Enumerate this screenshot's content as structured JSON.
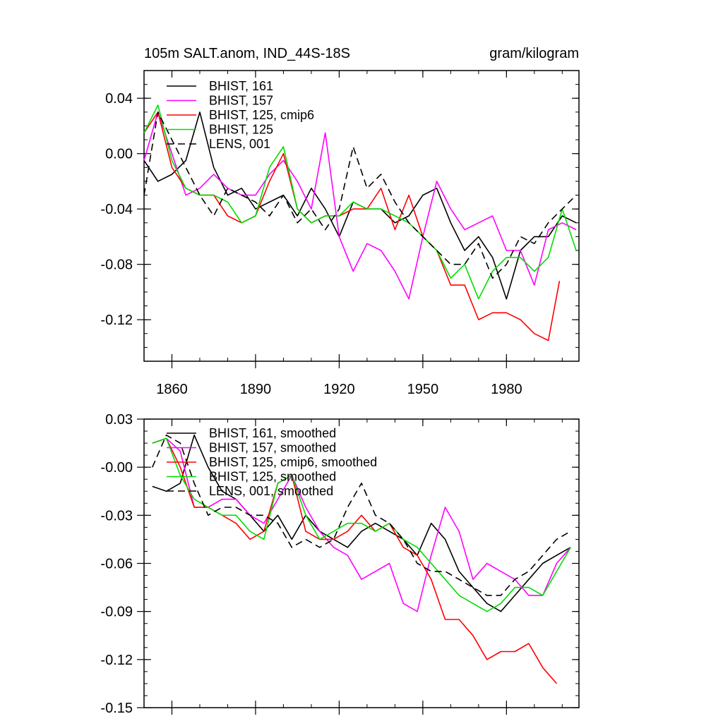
{
  "chart_data": [
    {
      "type": "line",
      "title": "105m SALT.anom, IND_44S-18S",
      "units": "gram/kilogram",
      "xlabel": "",
      "ylabel": "",
      "xlim": [
        1850,
        2006
      ],
      "ylim": [
        -0.15,
        0.06
      ],
      "xticks": [
        1860,
        1890,
        1920,
        1950,
        1980
      ],
      "xtick_labels": [
        "1860",
        "1890",
        "1920",
        "1950",
        "1980"
      ],
      "yticks": [
        0.04,
        0.0,
        -0.04,
        -0.08,
        -0.12
      ],
      "ytick_labels": [
        "0.04",
        "0.00",
        "-0.04",
        "-0.08",
        "-0.12"
      ],
      "grid": false,
      "legend_position": "top-left",
      "series": [
        {
          "name": "BHIST, 161",
          "color": "#000000",
          "dash": "solid",
          "x": [
            1850,
            1855,
            1860,
            1865,
            1870,
            1875,
            1880,
            1885,
            1890,
            1895,
            1900,
            1905,
            1910,
            1915,
            1920,
            1925,
            1930,
            1935,
            1940,
            1945,
            1950,
            1955,
            1960,
            1965,
            1970,
            1975,
            1980,
            1985,
            1990,
            1995,
            2000,
            2005
          ],
          "y": [
            -0.005,
            -0.02,
            -0.015,
            -0.005,
            0.03,
            -0.01,
            -0.03,
            -0.025,
            -0.04,
            -0.035,
            -0.03,
            -0.045,
            -0.025,
            -0.04,
            -0.06,
            -0.035,
            -0.04,
            -0.04,
            -0.05,
            -0.045,
            -0.03,
            -0.025,
            -0.05,
            -0.07,
            -0.06,
            -0.075,
            -0.105,
            -0.07,
            -0.06,
            -0.06,
            -0.045,
            -0.05
          ]
        },
        {
          "name": "BHIST, 157",
          "color": "#ff00ff",
          "dash": "solid",
          "x": [
            1850,
            1855,
            1860,
            1865,
            1870,
            1875,
            1880,
            1885,
            1890,
            1895,
            1900,
            1905,
            1910,
            1915,
            1920,
            1925,
            1930,
            1935,
            1940,
            1945,
            1950,
            1955,
            1960,
            1965,
            1970,
            1975,
            1980,
            1985,
            1990,
            1995,
            2000,
            2005
          ],
          "y": [
            -0.005,
            0.03,
            0.0,
            -0.03,
            -0.025,
            -0.015,
            -0.025,
            -0.03,
            -0.03,
            -0.015,
            -0.005,
            -0.02,
            -0.04,
            0.015,
            -0.06,
            -0.085,
            -0.065,
            -0.07,
            -0.085,
            -0.105,
            -0.06,
            -0.02,
            -0.04,
            -0.055,
            -0.05,
            -0.045,
            -0.07,
            -0.07,
            -0.095,
            -0.055,
            -0.05,
            -0.055
          ]
        },
        {
          "name": "BHIST, 125, cmip6",
          "color": "#ff0000",
          "dash": "solid",
          "x": [
            1850,
            1855,
            1860,
            1865,
            1870,
            1875,
            1880,
            1885,
            1890,
            1895,
            1900,
            1905,
            1910,
            1915,
            1920,
            1925,
            1930,
            1935,
            1940,
            1945,
            1950,
            1955,
            1960,
            1965,
            1970,
            1975,
            1980,
            1985,
            1990,
            1995,
            1999
          ],
          "y": [
            0.015,
            0.03,
            -0.01,
            -0.025,
            -0.03,
            -0.03,
            -0.045,
            -0.05,
            -0.045,
            -0.02,
            0.0,
            -0.04,
            -0.05,
            -0.045,
            -0.045,
            -0.04,
            -0.04,
            -0.025,
            -0.055,
            -0.03,
            -0.06,
            -0.07,
            -0.095,
            -0.095,
            -0.12,
            -0.115,
            -0.115,
            -0.12,
            -0.13,
            -0.135,
            -0.092
          ]
        },
        {
          "name": "BHIST, 125",
          "color": "#00dd00",
          "dash": "solid",
          "x": [
            1850,
            1855,
            1860,
            1865,
            1870,
            1875,
            1880,
            1885,
            1890,
            1895,
            1900,
            1905,
            1910,
            1915,
            1920,
            1925,
            1930,
            1935,
            1940,
            1945,
            1950,
            1955,
            1960,
            1965,
            1970,
            1975,
            1980,
            1985,
            1990,
            1995,
            2000,
            2005
          ],
          "y": [
            0.015,
            0.035,
            -0.005,
            -0.025,
            -0.03,
            -0.03,
            -0.035,
            -0.05,
            -0.045,
            -0.01,
            0.005,
            -0.04,
            -0.05,
            -0.045,
            -0.045,
            -0.035,
            -0.04,
            -0.04,
            -0.045,
            -0.05,
            -0.06,
            -0.07,
            -0.09,
            -0.08,
            -0.105,
            -0.085,
            -0.075,
            -0.075,
            -0.085,
            -0.075,
            -0.04,
            -0.07
          ]
        },
        {
          "name": "LENS, 001",
          "color": "#000000",
          "dash": "dashed",
          "x": [
            1850,
            1855,
            1860,
            1865,
            1870,
            1875,
            1880,
            1885,
            1890,
            1895,
            1900,
            1905,
            1910,
            1915,
            1920,
            1925,
            1930,
            1935,
            1940,
            1945,
            1950,
            1955,
            1960,
            1965,
            1970,
            1975,
            1980,
            1985,
            1990,
            1995,
            2000,
            2005
          ],
          "y": [
            -0.03,
            0.03,
            0.01,
            -0.01,
            -0.03,
            -0.045,
            -0.025,
            -0.03,
            -0.035,
            -0.045,
            -0.03,
            -0.05,
            -0.04,
            -0.055,
            -0.04,
            0.005,
            -0.025,
            -0.015,
            -0.035,
            -0.05,
            -0.06,
            -0.07,
            -0.08,
            -0.08,
            -0.065,
            -0.09,
            -0.08,
            -0.06,
            -0.065,
            -0.05,
            -0.04,
            -0.03
          ]
        }
      ]
    },
    {
      "type": "line",
      "title": "",
      "xlabel": "",
      "ylabel": "",
      "xlim": [
        1850,
        2006
      ],
      "ylim": [
        -0.15,
        0.03
      ],
      "xticks": [
        1860,
        1890,
        1920,
        1950,
        1980
      ],
      "xtick_labels": [],
      "yticks": [
        0.03,
        0.0,
        -0.03,
        -0.06,
        -0.09,
        -0.12,
        -0.15
      ],
      "ytick_labels": [
        "0.03",
        "-0.00",
        "-0.03",
        "-0.06",
        "-0.09",
        "-0.12",
        "-0.15"
      ],
      "grid": false,
      "legend_position": "top-center",
      "series": [
        {
          "name": "BHIST, 161, smoothed",
          "color": "#000000",
          "dash": "solid",
          "x": [
            1853,
            1858,
            1863,
            1868,
            1873,
            1878,
            1883,
            1888,
            1893,
            1898,
            1903,
            1908,
            1913,
            1918,
            1923,
            1928,
            1933,
            1938,
            1943,
            1948,
            1953,
            1958,
            1963,
            1968,
            1973,
            1978,
            1983,
            1988,
            1993,
            1998,
            2003
          ],
          "y": [
            -0.012,
            -0.015,
            -0.01,
            0.02,
            0.0,
            -0.015,
            -0.02,
            -0.03,
            -0.04,
            -0.03,
            -0.045,
            -0.03,
            -0.04,
            -0.045,
            -0.05,
            -0.04,
            -0.035,
            -0.04,
            -0.045,
            -0.055,
            -0.035,
            -0.045,
            -0.065,
            -0.075,
            -0.085,
            -0.09,
            -0.08,
            -0.07,
            -0.06,
            -0.055,
            -0.05
          ]
        },
        {
          "name": "BHIST, 157, smoothed",
          "color": "#ff00ff",
          "dash": "solid",
          "x": [
            1853,
            1858,
            1863,
            1868,
            1873,
            1878,
            1883,
            1888,
            1893,
            1898,
            1903,
            1908,
            1913,
            1918,
            1923,
            1928,
            1933,
            1938,
            1943,
            1948,
            1953,
            1958,
            1963,
            1968,
            1973,
            1978,
            1983,
            1988,
            1993,
            1998,
            2003
          ],
          "y": [
            0.015,
            0.018,
            0.01,
            -0.025,
            -0.025,
            -0.02,
            -0.02,
            -0.03,
            -0.035,
            -0.02,
            -0.005,
            -0.025,
            -0.04,
            -0.05,
            -0.055,
            -0.07,
            -0.065,
            -0.06,
            -0.085,
            -0.09,
            -0.055,
            -0.025,
            -0.04,
            -0.07,
            -0.06,
            -0.065,
            -0.07,
            -0.08,
            -0.08,
            -0.06,
            -0.05
          ]
        },
        {
          "name": "BHIST, 125, cmip6, smoothed",
          "color": "#ff0000",
          "dash": "solid",
          "x": [
            1853,
            1858,
            1863,
            1868,
            1873,
            1878,
            1883,
            1888,
            1893,
            1898,
            1903,
            1908,
            1913,
            1918,
            1923,
            1928,
            1933,
            1938,
            1943,
            1948,
            1953,
            1958,
            1963,
            1968,
            1973,
            1978,
            1983,
            1988,
            1993,
            1998
          ],
          "y": [
            0.015,
            0.018,
            0.0,
            -0.025,
            -0.025,
            -0.03,
            -0.035,
            -0.045,
            -0.04,
            -0.01,
            -0.005,
            -0.04,
            -0.045,
            -0.045,
            -0.04,
            -0.03,
            -0.04,
            -0.035,
            -0.05,
            -0.055,
            -0.07,
            -0.095,
            -0.095,
            -0.105,
            -0.12,
            -0.115,
            -0.115,
            -0.11,
            -0.125,
            -0.135
          ]
        },
        {
          "name": "BHIST, 125, smoothed",
          "color": "#00dd00",
          "dash": "solid",
          "x": [
            1853,
            1858,
            1863,
            1868,
            1873,
            1878,
            1883,
            1888,
            1893,
            1898,
            1903,
            1908,
            1913,
            1918,
            1923,
            1928,
            1933,
            1938,
            1943,
            1948,
            1953,
            1958,
            1963,
            1968,
            1973,
            1978,
            1983,
            1988,
            1993,
            1998,
            2003
          ],
          "y": [
            0.015,
            0.018,
            -0.005,
            -0.02,
            -0.025,
            -0.03,
            -0.03,
            -0.04,
            -0.045,
            -0.01,
            -0.005,
            -0.03,
            -0.045,
            -0.04,
            -0.035,
            -0.035,
            -0.04,
            -0.035,
            -0.045,
            -0.05,
            -0.06,
            -0.07,
            -0.08,
            -0.085,
            -0.09,
            -0.085,
            -0.075,
            -0.075,
            -0.08,
            -0.065,
            -0.05
          ]
        },
        {
          "name": "LENS, 001, smoothed",
          "color": "#000000",
          "dash": "dashed",
          "x": [
            1853,
            1858,
            1863,
            1868,
            1873,
            1878,
            1883,
            1888,
            1893,
            1898,
            1903,
            1908,
            1913,
            1918,
            1923,
            1928,
            1933,
            1938,
            1943,
            1948,
            1953,
            1958,
            1963,
            1968,
            1973,
            1978,
            1983,
            1988,
            1993,
            1998,
            2003
          ],
          "y": [
            0.0,
            0.02,
            0.015,
            -0.01,
            -0.03,
            -0.025,
            -0.025,
            -0.03,
            -0.03,
            -0.035,
            -0.05,
            -0.045,
            -0.05,
            -0.045,
            -0.025,
            -0.01,
            -0.03,
            -0.035,
            -0.045,
            -0.06,
            -0.065,
            -0.065,
            -0.07,
            -0.075,
            -0.08,
            -0.08,
            -0.07,
            -0.065,
            -0.055,
            -0.045,
            -0.04
          ]
        }
      ]
    }
  ]
}
